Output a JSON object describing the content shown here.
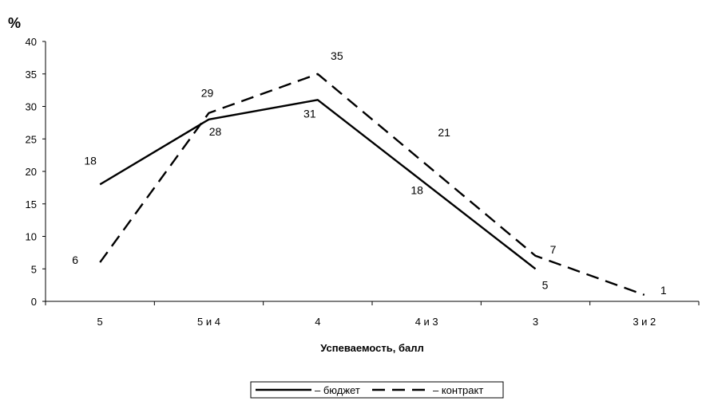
{
  "chart_data": {
    "type": "line",
    "categories": [
      "5",
      "5 и 4",
      "4",
      "4 и 3",
      "3",
      "3 и 2"
    ],
    "series": [
      {
        "name": "бюджет",
        "values": [
          18,
          28,
          31,
          18,
          5,
          null
        ],
        "style": "solid",
        "color": "#000000"
      },
      {
        "name": "контракт",
        "values": [
          6,
          29,
          35,
          21,
          7,
          1
        ],
        "style": "dashed",
        "color": "#000000"
      }
    ],
    "ylabel": "%",
    "xlabel": "Успеваемость, балл",
    "ylim": [
      0,
      40
    ],
    "yticks": [
      0,
      5,
      10,
      15,
      20,
      25,
      30,
      35,
      40
    ],
    "grid": false,
    "legend_position": "bottom"
  },
  "legend": {
    "items": [
      "бюджет",
      "контракт"
    ]
  }
}
